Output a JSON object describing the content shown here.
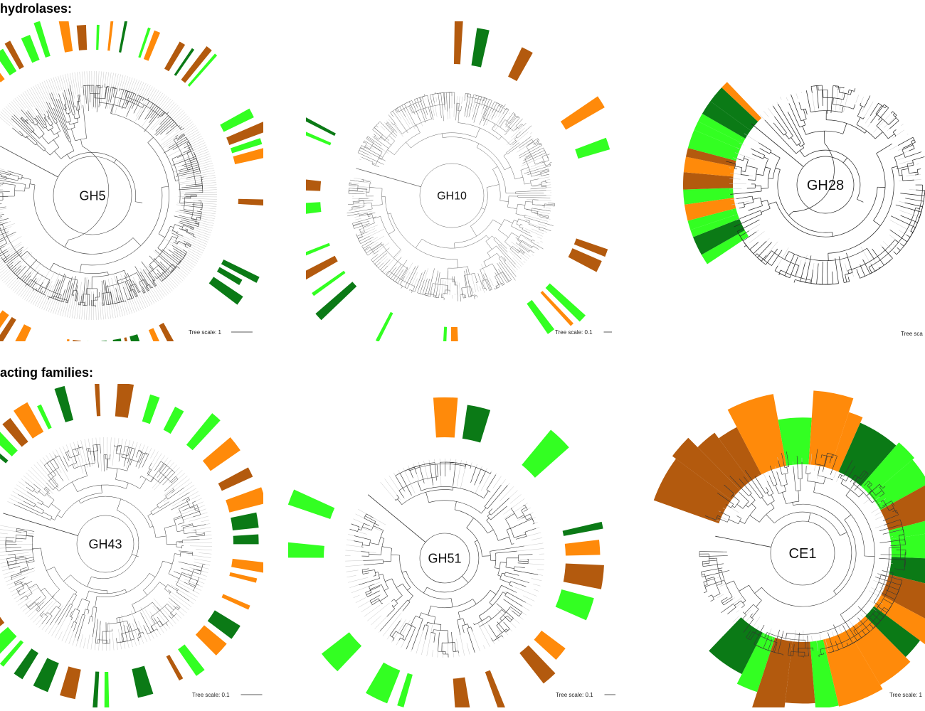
{
  "sections": [
    {
      "title": "hydrolases:"
    },
    {
      "title": "acting families:"
    }
  ],
  "colors": {
    "dark_green": "#0b7a16",
    "light_green": "#33ff22",
    "orange": "#ff8a0a",
    "brown": "#b35a0e",
    "branch": "#333333",
    "leaf_line": "#c8c8c8"
  },
  "trees": [
    {
      "id": "GH5",
      "label": "GH5",
      "scale_label": "Tree scale: 1"
    },
    {
      "id": "GH10",
      "label": "GH10",
      "scale_label": "Tree scale: 0.1"
    },
    {
      "id": "GH28",
      "label": "GH28",
      "scale_label": "Tree sca"
    },
    {
      "id": "GH43",
      "label": "GH43",
      "scale_label": "Tree scale: 0.1"
    },
    {
      "id": "GH51",
      "label": "GH51",
      "scale_label": "Tree scale: 0.1"
    },
    {
      "id": "CE1",
      "label": "CE1",
      "scale_label": "Tree scale: 1"
    }
  ]
}
